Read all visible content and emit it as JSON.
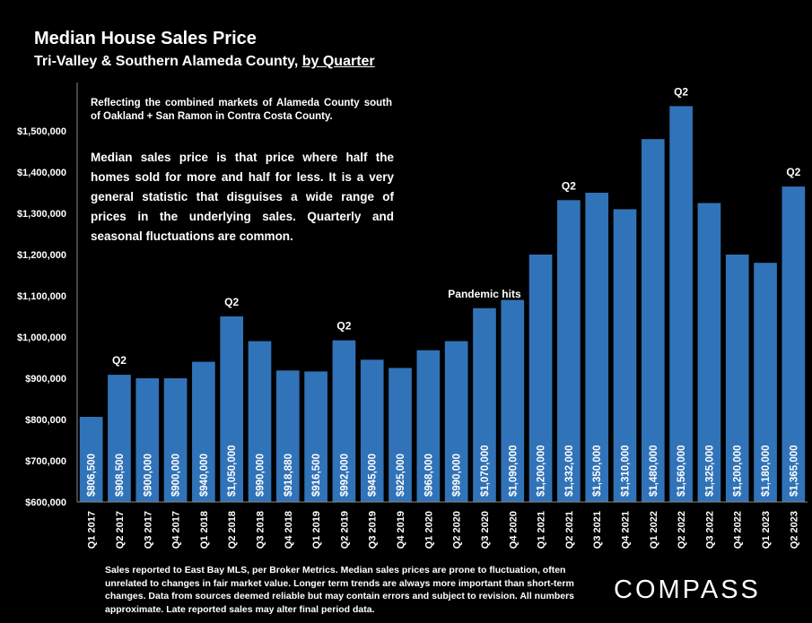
{
  "header": {
    "title": "Median House Sales Price",
    "subtitle_main": "Tri-Valley & Southern Alameda County, ",
    "subtitle_link": "by Quarter"
  },
  "notes": {
    "region": "Reflecting the combined markets of Alameda County south of Oakland + San Ramon in Contra Costa County.",
    "definition": "Median sales price is that price where half the homes sold for more and half for less. It is a very general statistic that disguises a wide range of prices in the underlying sales. Quarterly and seasonal fluctuations are common."
  },
  "footer": {
    "text": "Sales reported to East Bay MLS, per Broker Metrics. Median sales prices are prone to fluctuation, often unrelated to changes in fair market value. Longer term trends are always more important than short-term changes. Data from sources deemed reliable but may contain errors and subject to revision. All numbers approximate. Late reported sales may alter final period data."
  },
  "logo": {
    "text": "COMPASS"
  },
  "colors": {
    "bar": "#3173b8",
    "background": "#000000",
    "text": "#ffffff"
  },
  "chart_data": {
    "type": "bar",
    "ylim": [
      600000,
      1600000
    ],
    "yticks": [
      600000,
      700000,
      800000,
      900000,
      1000000,
      1100000,
      1200000,
      1300000,
      1400000,
      1500000
    ],
    "ytick_labels": [
      "$600,000",
      "$700,000",
      "$800,000",
      "$900,000",
      "$1,000,000",
      "$1,100,000",
      "$1,200,000",
      "$1,300,000",
      "$1,400,000",
      "$1,500,000"
    ],
    "grid": false,
    "categories": [
      "Q1 2017",
      "Q2 2017",
      "Q3 2017",
      "Q4 2017",
      "Q1 2018",
      "Q2 2018",
      "Q3 2018",
      "Q4 2018",
      "Q1 2019",
      "Q2 2019",
      "Q3 2019",
      "Q4 2019",
      "Q1 2020",
      "Q2 2020",
      "Q3 2020",
      "Q4 2020",
      "Q1 2021",
      "Q2 2021",
      "Q3 2021",
      "Q4 2021",
      "Q1 2022",
      "Q2 2022",
      "Q3 2022",
      "Q4 2022",
      "Q1 2023",
      "Q2 2023"
    ],
    "values": [
      806500,
      908500,
      900000,
      900000,
      940000,
      1050000,
      990000,
      918880,
      916500,
      992000,
      945000,
      925000,
      968000,
      990000,
      1070000,
      1090000,
      1200000,
      1332000,
      1350000,
      1310000,
      1480000,
      1560000,
      1325000,
      1200000,
      1180000,
      1365000
    ],
    "value_labels": [
      "$806,500",
      "$908,500",
      "$900,000",
      "$900,000",
      "$940,000",
      "$1,050,000",
      "$990,000",
      "$918,880",
      "$916,500",
      "$992,000",
      "$945,000",
      "$925,000",
      "$968,000",
      "$990,000",
      "$1,070,000",
      "$1,090,000",
      "$1,200,000",
      "$1,332,000",
      "$1,350,000",
      "$1,310,000",
      "$1,480,000",
      "$1,560,000",
      "$1,325,000",
      "$1,200,000",
      "$1,180,000",
      "$1,365,000"
    ],
    "annotations": [
      {
        "index": 1,
        "text": "Q2"
      },
      {
        "index": 5,
        "text": "Q2"
      },
      {
        "index": 9,
        "text": "Q2"
      },
      {
        "index": 17,
        "text": "Q2"
      },
      {
        "index": 21,
        "text": "Q2"
      },
      {
        "index": 25,
        "text": "Q2"
      },
      {
        "index": 14,
        "text": "Pandemic hits"
      }
    ]
  }
}
